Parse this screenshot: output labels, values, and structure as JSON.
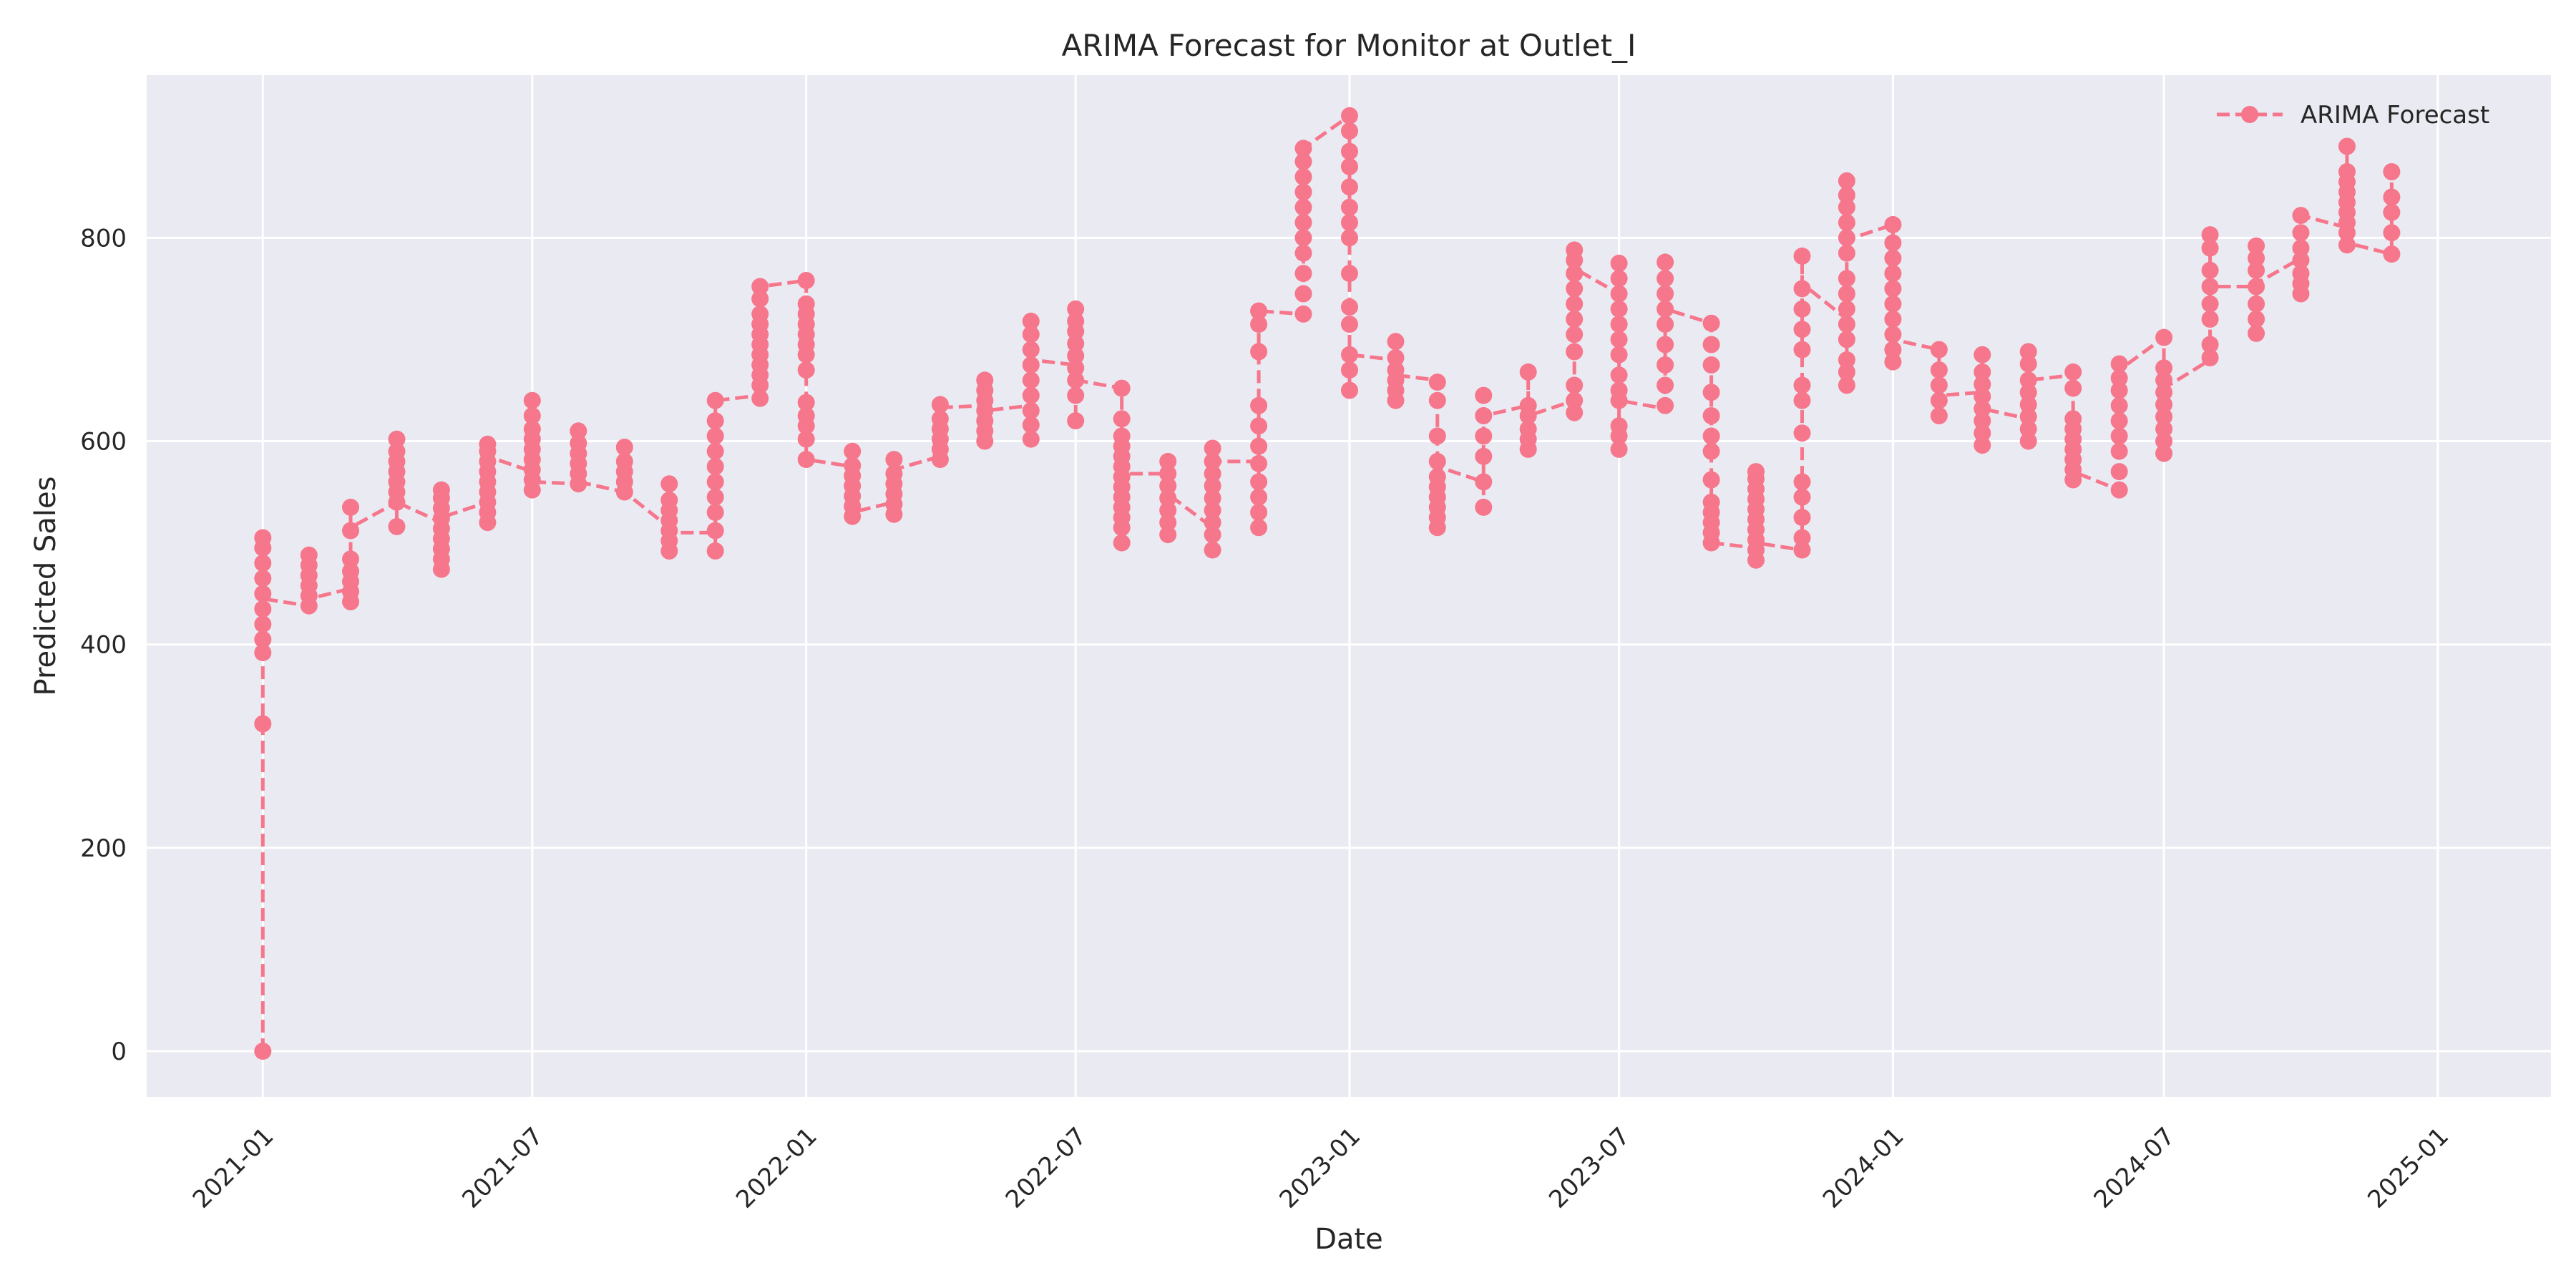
{
  "chart_data": {
    "type": "line",
    "title": "ARIMA Forecast for Monitor at Outlet_I",
    "xlabel": "Date",
    "ylabel": "Predicted Sales",
    "xlim": [
      "2020-10-15",
      "2025-03-18"
    ],
    "ylim": [
      -45,
      960
    ],
    "grid": true,
    "legend_position": "top-right",
    "yticks": [
      0,
      200,
      400,
      600,
      800
    ],
    "xticks": [
      "2021-01",
      "2021-07",
      "2022-01",
      "2022-07",
      "2023-01",
      "2023-07",
      "2024-01",
      "2024-07",
      "2025-01"
    ],
    "series": [
      {
        "name": "ARIMA Forecast",
        "color": "#f6768c",
        "line_style": "dashed",
        "marker": "circle",
        "months": [
          {
            "date": "2021-01-01",
            "values": [
              0,
              322,
              392,
              405,
              420,
              435,
              450,
              465,
              480,
              495,
              505
            ],
            "entry": 0,
            "exit": 445
          },
          {
            "date": "2021-02-01",
            "values": [
              438,
              448,
              458,
              468,
              478,
              488
            ],
            "entry": 438,
            "exit": 445
          },
          {
            "date": "2021-03-01",
            "values": [
              442,
              452,
              462,
              472,
              484,
              512,
              535
            ],
            "entry": 455,
            "exit": 515
          },
          {
            "date": "2021-04-01",
            "values": [
              516,
              540,
              550,
              560,
              570,
              580,
              590,
              602
            ],
            "entry": 540,
            "exit": 540
          },
          {
            "date": "2021-05-01",
            "values": [
              474,
              484,
              494,
              504,
              514,
              524,
              534,
              544,
              552
            ],
            "entry": 520,
            "exit": 525
          },
          {
            "date": "2021-06-01",
            "values": [
              520,
              530,
              540,
              550,
              560,
              570,
              580,
              590,
              597
            ],
            "entry": 540,
            "exit": 585
          },
          {
            "date": "2021-07-01",
            "values": [
              552,
              562,
              572,
              582,
              592,
              602,
              612,
              625,
              640
            ],
            "entry": 570,
            "exit": 560
          },
          {
            "date": "2021-08-01",
            "values": [
              558,
              568,
              578,
              588,
              598,
              610
            ],
            "entry": 558,
            "exit": 560
          },
          {
            "date": "2021-09-01",
            "values": [
              550,
              560,
              570,
              580,
              594
            ],
            "entry": 550,
            "exit": 550
          },
          {
            "date": "2021-10-01",
            "values": [
              492,
              502,
              512,
              522,
              532,
              542,
              558
            ],
            "entry": 515,
            "exit": 510
          },
          {
            "date": "2021-11-01",
            "values": [
              492,
              512,
              530,
              545,
              560,
              575,
              590,
              605,
              620,
              640
            ],
            "entry": 510,
            "exit": 640
          },
          {
            "date": "2021-12-01",
            "values": [
              642,
              655,
              665,
              675,
              685,
              695,
              705,
              715,
              725,
              740,
              752
            ],
            "entry": 645,
            "exit": 752
          },
          {
            "date": "2022-01-01",
            "values": [
              582,
              602,
              615,
              625,
              638,
              670,
              685,
              695,
              705,
              715,
              725,
              735,
              758
            ],
            "entry": 758,
            "exit": 582
          },
          {
            "date": "2022-02-01",
            "values": [
              526,
              536,
              546,
              556,
              566,
              576,
              590
            ],
            "entry": 575,
            "exit": 530
          },
          {
            "date": "2022-03-01",
            "values": [
              528,
              538,
              548,
              558,
              568,
              582
            ],
            "entry": 540,
            "exit": 572
          },
          {
            "date": "2022-04-01",
            "values": [
              582,
              592,
              602,
              612,
              622,
              636
            ],
            "entry": 585,
            "exit": 633
          },
          {
            "date": "2022-05-01",
            "values": [
              600,
              610,
              620,
              630,
              640,
              650,
              660
            ],
            "entry": 635,
            "exit": 630
          },
          {
            "date": "2022-06-01",
            "values": [
              602,
              616,
              630,
              645,
              660,
              675,
              690,
              705,
              718
            ],
            "entry": 635,
            "exit": 680
          },
          {
            "date": "2022-07-01",
            "values": [
              620,
              645,
              660,
              672,
              684,
              696,
              708,
              718,
              730
            ],
            "entry": 675,
            "exit": 660
          },
          {
            "date": "2022-08-01",
            "values": [
              500,
              515,
              525,
              535,
              545,
              555,
              565,
              575,
              585,
              595,
              605,
              622,
              652
            ],
            "entry": 652,
            "exit": 568
          },
          {
            "date": "2022-09-01",
            "values": [
              508,
              520,
              532,
              544,
              556,
              568,
              580
            ],
            "entry": 568,
            "exit": 548
          },
          {
            "date": "2022-10-01",
            "values": [
              493,
              508,
              520,
              532,
              544,
              556,
              568,
              580,
              593
            ],
            "entry": 515,
            "exit": 580
          },
          {
            "date": "2022-11-01",
            "values": [
              515,
              530,
              545,
              560,
              578,
              595,
              615,
              635,
              688,
              715,
              728
            ],
            "entry": 580,
            "exit": 728
          },
          {
            "date": "2022-12-01",
            "values": [
              725,
              745,
              765,
              785,
              800,
              815,
              830,
              845,
              860,
              875,
              888
            ],
            "entry": 725,
            "exit": 888
          },
          {
            "date": "2023-01-01",
            "values": [
              650,
              670,
              685,
              715,
              732,
              765,
              800,
              815,
              830,
              850,
              870,
              885,
              905,
              920
            ],
            "entry": 920,
            "exit": 685
          },
          {
            "date": "2023-02-01",
            "values": [
              640,
              650,
              660,
              670,
              682,
              698
            ],
            "entry": 680,
            "exit": 665
          },
          {
            "date": "2023-03-01",
            "values": [
              515,
              525,
              535,
              545,
              555,
              565,
              580,
              605,
              640,
              658
            ],
            "entry": 660,
            "exit": 575
          },
          {
            "date": "2023-04-01",
            "values": [
              535,
              560,
              585,
              605,
              625,
              645
            ],
            "entry": 560,
            "exit": 625
          },
          {
            "date": "2023-05-01",
            "values": [
              592,
              602,
              612,
              625,
              635,
              668
            ],
            "entry": 635,
            "exit": 625
          },
          {
            "date": "2023-06-01",
            "values": [
              628,
              640,
              655,
              688,
              705,
              720,
              735,
              750,
              765,
              778,
              788
            ],
            "entry": 640,
            "exit": 770
          },
          {
            "date": "2023-07-01",
            "values": [
              592,
              605,
              615,
              640,
              650,
              665,
              685,
              700,
              715,
              730,
              745,
              760,
              775
            ],
            "entry": 745,
            "exit": 640
          },
          {
            "date": "2023-08-01",
            "values": [
              635,
              655,
              675,
              695,
              715,
              730,
              745,
              760,
              776
            ],
            "entry": 632,
            "exit": 730
          },
          {
            "date": "2023-09-01",
            "values": [
              500,
              510,
              520,
              530,
              540,
              562,
              590,
              605,
              625,
              648,
              675,
              695,
              716
            ],
            "entry": 716,
            "exit": 500
          },
          {
            "date": "2023-10-01",
            "values": [
              483,
              493,
              503,
              513,
              523,
              533,
              543,
              553,
              563,
              570
            ],
            "entry": 495,
            "exit": 500
          },
          {
            "date": "2023-11-01",
            "values": [
              493,
              505,
              525,
              545,
              560,
              608,
              640,
              655,
              690,
              710,
              730,
              750,
              782
            ],
            "entry": 493,
            "exit": 755
          },
          {
            "date": "2023-12-01",
            "values": [
              655,
              668,
              680,
              700,
              715,
              730,
              745,
              760,
              785,
              800,
              815,
              830,
              842,
              856
            ],
            "entry": 720,
            "exit": 798
          },
          {
            "date": "2024-01-01",
            "values": [
              678,
              690,
              705,
              720,
              735,
              750,
              765,
              780,
              795,
              813
            ],
            "entry": 813,
            "exit": 700
          },
          {
            "date": "2024-02-01",
            "values": [
              625,
              640,
              655,
              670,
              690
            ],
            "entry": 690,
            "exit": 645
          },
          {
            "date": "2024-03-01",
            "values": [
              596,
              608,
              620,
              632,
              644,
              656,
              668,
              685
            ],
            "entry": 648,
            "exit": 632
          },
          {
            "date": "2024-04-01",
            "values": [
              600,
              612,
              624,
              636,
              648,
              660,
              676,
              688
            ],
            "entry": 622,
            "exit": 660
          },
          {
            "date": "2024-05-01",
            "values": [
              562,
              572,
              582,
              592,
              602,
              612,
              622,
              652,
              668
            ],
            "entry": 665,
            "exit": 570
          },
          {
            "date": "2024-06-01",
            "values": [
              552,
              570,
              590,
              605,
              620,
              635,
              650,
              662,
              676
            ],
            "entry": 552,
            "exit": 670
          },
          {
            "date": "2024-07-01",
            "values": [
              588,
              600,
              612,
              624,
              636,
              648,
              660,
              672,
              702
            ],
            "entry": 702,
            "exit": 652
          },
          {
            "date": "2024-08-01",
            "values": [
              682,
              695,
              720,
              735,
              752,
              768,
              790,
              803
            ],
            "entry": 680,
            "exit": 752
          },
          {
            "date": "2024-09-01",
            "values": [
              706,
              720,
              735,
              752,
              768,
              780,
              792
            ],
            "entry": 752,
            "exit": 755
          },
          {
            "date": "2024-10-01",
            "values": [
              745,
              755,
              765,
              778,
              790,
              805,
              822
            ],
            "entry": 780,
            "exit": 822
          },
          {
            "date": "2024-11-01",
            "values": [
              793,
              805,
              815,
              825,
              835,
              845,
              855,
              865,
              890
            ],
            "entry": 810,
            "exit": 795
          },
          {
            "date": "2024-12-01",
            "values": [
              784,
              805,
              825,
              840,
              865
            ],
            "entry": 784,
            "exit": 784
          }
        ]
      }
    ]
  }
}
